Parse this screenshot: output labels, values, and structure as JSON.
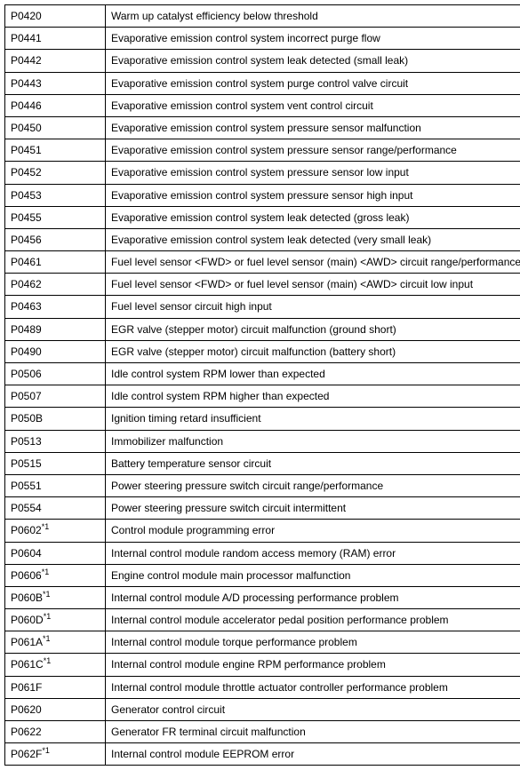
{
  "table": {
    "columnWidths": [
      "100px",
      "475px"
    ],
    "fontSize": 12,
    "borderColor": "#000000",
    "backgroundColor": "#ffffff",
    "rows": [
      {
        "code": "P0420",
        "sup": "",
        "desc": "Warm up catalyst efficiency below threshold"
      },
      {
        "code": "P0441",
        "sup": "",
        "desc": "Evaporative emission control system incorrect purge flow"
      },
      {
        "code": "P0442",
        "sup": "",
        "desc": "Evaporative emission control system leak detected (small leak)"
      },
      {
        "code": "P0443",
        "sup": "",
        "desc": "Evaporative emission control system purge control valve circuit"
      },
      {
        "code": "P0446",
        "sup": "",
        "desc": "Evaporative emission control system vent control circuit"
      },
      {
        "code": "P0450",
        "sup": "",
        "desc": "Evaporative emission control system pressure sensor malfunction"
      },
      {
        "code": "P0451",
        "sup": "",
        "desc": "Evaporative emission control system pressure sensor range/performance"
      },
      {
        "code": "P0452",
        "sup": "",
        "desc": "Evaporative emission control system pressure sensor low input"
      },
      {
        "code": "P0453",
        "sup": "",
        "desc": "Evaporative emission control system pressure sensor high input"
      },
      {
        "code": "P0455",
        "sup": "",
        "desc": "Evaporative emission control system leak detected (gross leak)"
      },
      {
        "code": "P0456",
        "sup": "",
        "desc": "Evaporative emission control system leak detected (very small leak)"
      },
      {
        "code": "P0461",
        "sup": "",
        "desc": "Fuel level sensor <FWD> or fuel level sensor (main) <AWD> circuit range/performance"
      },
      {
        "code": "P0462",
        "sup": "",
        "desc": "Fuel level sensor <FWD> or fuel level sensor (main) <AWD> circuit low input"
      },
      {
        "code": "P0463",
        "sup": "",
        "desc": "Fuel level sensor circuit high input"
      },
      {
        "code": "P0489",
        "sup": "",
        "desc": "EGR valve (stepper motor) circuit malfunction (ground short)"
      },
      {
        "code": "P0490",
        "sup": "",
        "desc": "EGR valve (stepper motor) circuit malfunction (battery short)"
      },
      {
        "code": "P0506",
        "sup": "",
        "desc": "Idle control system RPM lower than expected"
      },
      {
        "code": "P0507",
        "sup": "",
        "desc": "Idle control system RPM higher than expected"
      },
      {
        "code": "P050B",
        "sup": "",
        "desc": "Ignition timing retard insufficient"
      },
      {
        "code": "P0513",
        "sup": "",
        "desc": "Immobilizer malfunction"
      },
      {
        "code": "P0515",
        "sup": "",
        "desc": "Battery temperature sensor circuit"
      },
      {
        "code": "P0551",
        "sup": "",
        "desc": "Power steering pressure switch circuit range/performance"
      },
      {
        "code": "P0554",
        "sup": "",
        "desc": "Power steering pressure switch circuit intermittent"
      },
      {
        "code": "P0602",
        "sup": "*1",
        "desc": "Control module programming error"
      },
      {
        "code": "P0604",
        "sup": "",
        "desc": "Internal control module random access memory (RAM) error"
      },
      {
        "code": "P0606",
        "sup": "*1",
        "desc": "Engine control module main processor malfunction"
      },
      {
        "code": "P060B",
        "sup": "*1",
        "desc": "Internal control module A/D processing performance problem"
      },
      {
        "code": "P060D",
        "sup": "*1",
        "desc": "Internal control module accelerator pedal position performance problem"
      },
      {
        "code": "P061A",
        "sup": "*1",
        "desc": "Internal control module torque performance problem"
      },
      {
        "code": "P061C",
        "sup": "*1",
        "desc": "Internal control module engine RPM performance problem"
      },
      {
        "code": "P061F",
        "sup": "",
        "desc": "Internal control module throttle actuator controller performance problem"
      },
      {
        "code": "P0620",
        "sup": "",
        "desc": "Generator control circuit"
      },
      {
        "code": "P0622",
        "sup": "",
        "desc": "Generator FR terminal circuit malfunction"
      },
      {
        "code": "P062F",
        "sup": "*1",
        "desc": "Internal control module EEPROM error"
      }
    ]
  }
}
